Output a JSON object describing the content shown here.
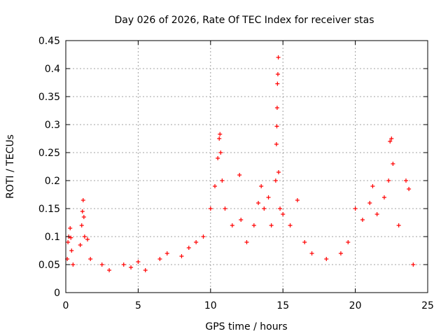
{
  "chart_data": {
    "type": "scatter",
    "title": "Day 026 of 2026, Rate Of TEC Index for receiver stas",
    "xlabel": "GPS time / hours",
    "ylabel": "ROTI / TECUs",
    "xlim": [
      0,
      25
    ],
    "ylim": [
      0,
      0.45
    ],
    "xticks": [
      0,
      5,
      10,
      15,
      20,
      25
    ],
    "yticks": [
      0,
      0.05,
      0.1,
      0.15,
      0.2,
      0.25,
      0.3,
      0.35,
      0.4,
      0.45
    ],
    "xtick_labels": [
      "0",
      "5",
      "10",
      "15",
      "20",
      "25"
    ],
    "ytick_labels": [
      "0",
      "0.05",
      "0.1",
      "0.15",
      "0.2",
      "0.25",
      "0.3",
      "0.35",
      "0.4",
      "0.45"
    ],
    "grid": true,
    "marker": "+",
    "marker_color": "#ff0000",
    "series": [
      {
        "points": [
          [
            0.1,
            0.06
          ],
          [
            0.15,
            0.09
          ],
          [
            0.2,
            0.1
          ],
          [
            0.3,
            0.115
          ],
          [
            0.35,
            0.098
          ],
          [
            0.4,
            0.075
          ],
          [
            0.5,
            0.05
          ],
          [
            1.0,
            0.085
          ],
          [
            1.1,
            0.12
          ],
          [
            1.15,
            0.145
          ],
          [
            1.2,
            0.165
          ],
          [
            1.25,
            0.135
          ],
          [
            1.3,
            0.1
          ],
          [
            1.5,
            0.095
          ],
          [
            1.7,
            0.06
          ],
          [
            2.5,
            0.05
          ],
          [
            3.0,
            0.04
          ],
          [
            4.0,
            0.05
          ],
          [
            4.5,
            0.045
          ],
          [
            5.0,
            0.055
          ],
          [
            5.5,
            0.04
          ],
          [
            6.5,
            0.06
          ],
          [
            7.0,
            0.07
          ],
          [
            8.0,
            0.065
          ],
          [
            8.5,
            0.08
          ],
          [
            9.0,
            0.09
          ],
          [
            9.5,
            0.1
          ],
          [
            10.0,
            0.15
          ],
          [
            10.3,
            0.19
          ],
          [
            10.5,
            0.24
          ],
          [
            10.6,
            0.275
          ],
          [
            10.65,
            0.283
          ],
          [
            10.7,
            0.25
          ],
          [
            10.8,
            0.2
          ],
          [
            11.0,
            0.15
          ],
          [
            11.5,
            0.12
          ],
          [
            12.0,
            0.21
          ],
          [
            12.1,
            0.13
          ],
          [
            12.5,
            0.09
          ],
          [
            13.0,
            0.12
          ],
          [
            13.3,
            0.16
          ],
          [
            13.5,
            0.19
          ],
          [
            13.7,
            0.15
          ],
          [
            14.0,
            0.17
          ],
          [
            14.2,
            0.12
          ],
          [
            14.5,
            0.2
          ],
          [
            14.55,
            0.265
          ],
          [
            14.58,
            0.297
          ],
          [
            14.6,
            0.33
          ],
          [
            14.62,
            0.373
          ],
          [
            14.65,
            0.39
          ],
          [
            14.68,
            0.42
          ],
          [
            14.7,
            0.215
          ],
          [
            14.8,
            0.15
          ],
          [
            15.0,
            0.14
          ],
          [
            15.5,
            0.12
          ],
          [
            16.0,
            0.165
          ],
          [
            16.5,
            0.09
          ],
          [
            17.0,
            0.07
          ],
          [
            18.0,
            0.06
          ],
          [
            19.0,
            0.07
          ],
          [
            19.5,
            0.09
          ],
          [
            20.0,
            0.15
          ],
          [
            20.5,
            0.13
          ],
          [
            21.0,
            0.16
          ],
          [
            21.2,
            0.19
          ],
          [
            21.5,
            0.14
          ],
          [
            22.0,
            0.17
          ],
          [
            22.3,
            0.2
          ],
          [
            22.4,
            0.27
          ],
          [
            22.5,
            0.275
          ],
          [
            22.6,
            0.23
          ],
          [
            23.0,
            0.12
          ],
          [
            23.5,
            0.2
          ],
          [
            23.7,
            0.185
          ],
          [
            24.0,
            0.05
          ]
        ]
      }
    ]
  }
}
